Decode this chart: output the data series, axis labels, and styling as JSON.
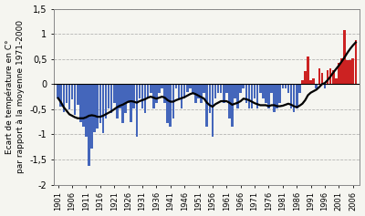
{
  "years": [
    1901,
    1902,
    1903,
    1904,
    1905,
    1906,
    1907,
    1908,
    1909,
    1910,
    1911,
    1912,
    1913,
    1914,
    1915,
    1916,
    1917,
    1918,
    1919,
    1920,
    1921,
    1922,
    1923,
    1924,
    1925,
    1926,
    1927,
    1928,
    1929,
    1930,
    1931,
    1932,
    1933,
    1934,
    1935,
    1936,
    1937,
    1938,
    1939,
    1940,
    1941,
    1942,
    1943,
    1944,
    1945,
    1946,
    1947,
    1948,
    1949,
    1950,
    1951,
    1952,
    1953,
    1954,
    1955,
    1956,
    1957,
    1958,
    1959,
    1960,
    1961,
    1962,
    1963,
    1964,
    1965,
    1966,
    1967,
    1968,
    1969,
    1970,
    1971,
    1972,
    1973,
    1974,
    1975,
    1976,
    1977,
    1978,
    1979,
    1980,
    1981,
    1982,
    1983,
    1984,
    1985,
    1986,
    1987,
    1988,
    1989,
    1990,
    1991,
    1992,
    1993,
    1994,
    1995,
    1996,
    1997,
    1998,
    1999,
    2000,
    2001,
    2002,
    2003,
    2004,
    2005,
    2006,
    2007
  ],
  "values": [
    -0.28,
    -0.45,
    -0.55,
    -0.38,
    -0.5,
    -0.3,
    -0.62,
    -0.42,
    -0.75,
    -0.85,
    -1.05,
    -1.62,
    -1.28,
    -0.95,
    -0.88,
    -0.78,
    -0.98,
    -0.68,
    -0.48,
    -0.58,
    -0.38,
    -0.68,
    -0.48,
    -0.78,
    -0.58,
    -0.38,
    -0.75,
    -0.48,
    -1.05,
    -0.28,
    -0.48,
    -0.58,
    -0.28,
    -0.18,
    -0.48,
    -0.38,
    -0.18,
    -0.08,
    -0.38,
    -0.78,
    -0.85,
    -0.68,
    -0.08,
    -0.28,
    -0.48,
    -0.28,
    -0.15,
    -0.08,
    -0.18,
    -0.38,
    -0.28,
    -0.38,
    -0.18,
    -0.85,
    -0.58,
    -1.05,
    -0.28,
    -0.18,
    -0.18,
    -0.38,
    -0.18,
    -0.68,
    -0.85,
    -0.28,
    -0.48,
    -0.18,
    -0.08,
    -0.38,
    -0.48,
    -0.48,
    -0.28,
    -0.48,
    -0.18,
    -0.28,
    -0.38,
    -0.48,
    -0.18,
    -0.55,
    -0.48,
    -0.38,
    -0.08,
    -0.08,
    -0.18,
    -0.48,
    -0.55,
    -0.48,
    -0.18,
    0.08,
    0.25,
    0.55,
    0.08,
    0.12,
    -0.08,
    0.32,
    0.22,
    -0.08,
    0.28,
    0.32,
    0.28,
    0.12,
    0.42,
    0.52,
    1.08,
    0.48,
    0.48,
    0.52,
    0.88
  ],
  "smooth_values": [
    -0.28,
    -0.36,
    -0.46,
    -0.53,
    -0.6,
    -0.63,
    -0.66,
    -0.68,
    -0.68,
    -0.68,
    -0.66,
    -0.63,
    -0.62,
    -0.63,
    -0.65,
    -0.65,
    -0.63,
    -0.6,
    -0.57,
    -0.54,
    -0.5,
    -0.46,
    -0.43,
    -0.41,
    -0.38,
    -0.35,
    -0.34,
    -0.35,
    -0.37,
    -0.34,
    -0.32,
    -0.3,
    -0.27,
    -0.25,
    -0.27,
    -0.29,
    -0.27,
    -0.25,
    -0.27,
    -0.32,
    -0.35,
    -0.35,
    -0.32,
    -0.3,
    -0.28,
    -0.26,
    -0.23,
    -0.2,
    -0.18,
    -0.2,
    -0.23,
    -0.26,
    -0.29,
    -0.37,
    -0.42,
    -0.45,
    -0.4,
    -0.37,
    -0.34,
    -0.34,
    -0.34,
    -0.37,
    -0.41,
    -0.39,
    -0.37,
    -0.34,
    -0.29,
    -0.3,
    -0.32,
    -0.35,
    -0.38,
    -0.4,
    -0.42,
    -0.42,
    -0.42,
    -0.44,
    -0.42,
    -0.42,
    -0.44,
    -0.44,
    -0.43,
    -0.41,
    -0.39,
    -0.41,
    -0.44,
    -0.46,
    -0.43,
    -0.39,
    -0.32,
    -0.22,
    -0.17,
    -0.14,
    -0.11,
    -0.06,
    0.0,
    0.02,
    0.08,
    0.15,
    0.23,
    0.3,
    0.37,
    0.45,
    0.53,
    0.62,
    0.7,
    0.77,
    0.83
  ],
  "bar_color_positive": "#cc2222",
  "bar_color_negative": "#4466bb",
  "line_color": "#000000",
  "ylabel": "Ecart de température en C°\npar rapport à la moyenne 1971-2000",
  "ylim": [
    -2.0,
    1.5
  ],
  "yticks": [
    -2.0,
    -1.5,
    -1.0,
    -0.5,
    0.0,
    0.5,
    1.0,
    1.5
  ],
  "ytick_labels": [
    "-2",
    "-1,5",
    "-1",
    "-0,5",
    "0",
    "0,5",
    "1",
    "1,5"
  ],
  "xtick_years": [
    1901,
    1906,
    1911,
    1916,
    1921,
    1926,
    1931,
    1936,
    1941,
    1946,
    1951,
    1956,
    1961,
    1966,
    1971,
    1976,
    1981,
    1986,
    1991,
    1996,
    2001,
    2006
  ],
  "bg_color": "#f5f5f0",
  "grid_color": "#999999",
  "xlim": [
    1899.5,
    2008.5
  ]
}
